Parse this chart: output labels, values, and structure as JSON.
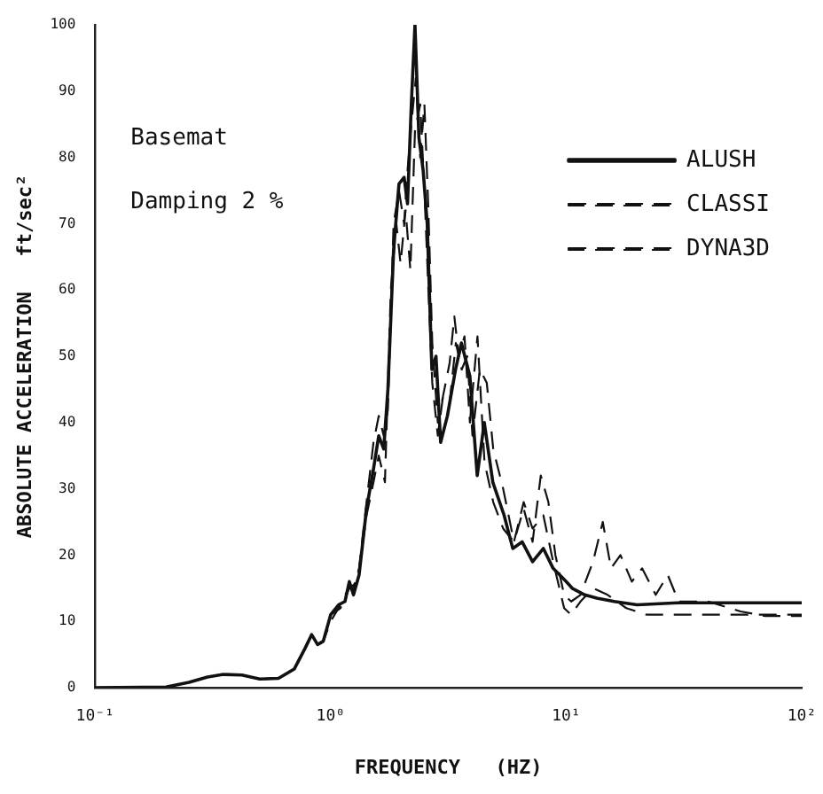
{
  "chart_data": {
    "type": "line",
    "xlabel": "FREQUENCY   (HZ)",
    "ylabel": "ABSOLUTE ACCELERATION   ft/sec²",
    "annotations": [
      "Basemat",
      "Damping 2 %"
    ],
    "log": "x",
    "xlim": [
      0.1,
      100
    ],
    "xticks": [
      {
        "value": 0.1,
        "label": "10⁻¹"
      },
      {
        "value": 1,
        "label": "10⁰"
      },
      {
        "value": 10,
        "label": "10¹"
      },
      {
        "value": 100,
        "label": "10²"
      }
    ],
    "ylim": [
      0,
      100
    ],
    "yticks": [
      0,
      10,
      20,
      30,
      40,
      50,
      60,
      70,
      80,
      90,
      100
    ],
    "grid": false,
    "legend": "top right",
    "marker": "none",
    "series": [
      {
        "name": "ALUSH",
        "color": "#111111",
        "line_style": "solid",
        "x": [
          0.1,
          0.2,
          0.25,
          0.3,
          0.35,
          0.42,
          0.5,
          0.6,
          0.7,
          0.78,
          0.83,
          0.88,
          0.93,
          1.0,
          1.08,
          1.15,
          1.2,
          1.25,
          1.32,
          1.42,
          1.52,
          1.6,
          1.68,
          1.75,
          1.85,
          1.95,
          2.05,
          2.12,
          2.2,
          2.28,
          2.37,
          2.47,
          2.57,
          2.69,
          2.8,
          2.93,
          3.13,
          3.39,
          3.59,
          3.9,
          4.19,
          4.49,
          4.88,
          5.45,
          5.93,
          6.5,
          7.2,
          8.0,
          8.8,
          10,
          10.6,
          12,
          13.5,
          16,
          20,
          30,
          50,
          100
        ],
        "values": [
          0,
          0.1,
          0.8,
          1.6,
          2,
          1.9,
          1.3,
          1.4,
          2.8,
          6,
          8,
          6.5,
          7,
          11,
          12.5,
          13,
          16,
          14,
          17,
          27,
          33,
          38,
          36,
          45,
          66,
          76,
          77,
          73,
          88,
          100,
          83,
          78,
          70,
          48,
          50,
          37,
          41,
          48,
          52,
          47,
          32,
          40,
          31,
          26,
          21,
          22,
          19,
          21,
          18,
          16,
          15,
          14,
          13.5,
          13,
          12.5,
          12.8,
          12.8,
          12.8
        ]
      },
      {
        "name": "CLASSI",
        "color": "#111111",
        "line_style": "dashed",
        "x": [
          0.1,
          0.2,
          0.25,
          0.3,
          0.35,
          0.42,
          0.5,
          0.6,
          0.7,
          0.78,
          0.83,
          0.88,
          0.93,
          1.0,
          1.08,
          1.15,
          1.2,
          1.25,
          1.32,
          1.42,
          1.52,
          1.6,
          1.68,
          1.75,
          1.85,
          1.95,
          2.05,
          2.12,
          2.2,
          2.3,
          2.4,
          2.5,
          2.6,
          2.7,
          2.85,
          3.0,
          3.2,
          3.35,
          3.5,
          3.7,
          3.9,
          4.2,
          4.5,
          4.9,
          5.4,
          6.0,
          6.6,
          7.2,
          7.8,
          8.4,
          9.0,
          9.8,
          10.5,
          11.5,
          13,
          14.3,
          15.5,
          17,
          19,
          21,
          24,
          27,
          30,
          40,
          55,
          70,
          100
        ],
        "values": [
          0,
          0.1,
          0.8,
          1.6,
          2,
          1.9,
          1.3,
          1.4,
          2.8,
          6,
          8,
          6.5,
          7,
          10,
          12,
          14,
          15,
          15,
          18,
          28,
          37,
          41,
          38,
          42,
          70,
          75,
          70,
          78,
          85,
          92,
          80,
          88,
          72,
          52,
          40,
          44,
          49,
          56,
          50,
          53,
          40,
          53,
          34,
          28,
          24,
          22,
          27,
          22,
          32,
          28,
          20,
          14,
          13,
          14,
          19,
          25,
          18,
          20,
          16,
          18,
          14,
          17,
          13,
          13,
          11.5,
          10.8,
          10.8
        ]
      },
      {
        "name": "DYNA3D",
        "color": "#111111",
        "line_style": "dashed",
        "x": [
          0.1,
          0.2,
          0.25,
          0.3,
          0.35,
          0.42,
          0.5,
          0.6,
          0.7,
          0.78,
          0.83,
          0.88,
          0.93,
          1.0,
          1.1,
          1.2,
          1.3,
          1.42,
          1.52,
          1.6,
          1.7,
          1.8,
          1.9,
          1.98,
          2.08,
          2.18,
          2.28,
          2.4,
          2.5,
          2.6,
          2.7,
          2.85,
          3.0,
          3.2,
          3.4,
          3.6,
          3.8,
          4.0,
          4.3,
          4.6,
          4.9,
          5.4,
          6.0,
          6.6,
          7.2,
          8.0,
          8.8,
          9.8,
          10.5,
          11.5,
          13,
          15,
          18,
          22,
          30,
          50,
          100
        ],
        "values": [
          0,
          0.1,
          0.8,
          1.6,
          2,
          1.9,
          1.3,
          1.4,
          2.8,
          6,
          8,
          6.5,
          7,
          11,
          12,
          15,
          16,
          26,
          31,
          35,
          31,
          60,
          70,
          64,
          72,
          63,
          84,
          88,
          75,
          60,
          46,
          38,
          44,
          43,
          52,
          48,
          50,
          38,
          48,
          46,
          36,
          30,
          22,
          28,
          24,
          26,
          19,
          12,
          11,
          13,
          15,
          14,
          12,
          11,
          11,
          11,
          11
        ]
      }
    ]
  }
}
